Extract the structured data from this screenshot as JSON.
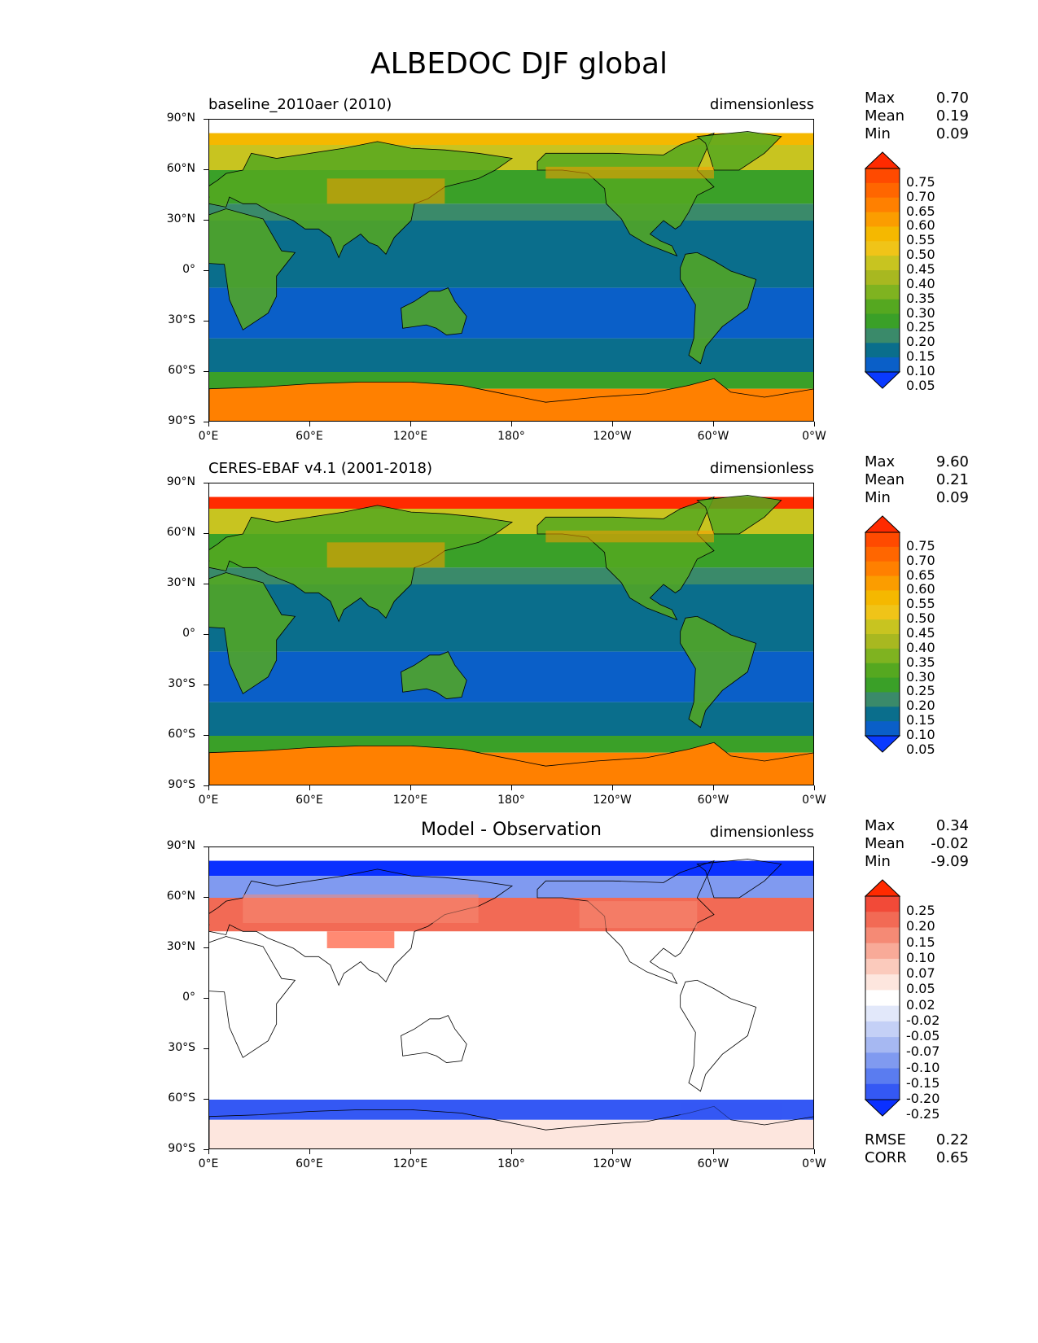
{
  "figure": {
    "title": "ALBEDOC DJF global"
  },
  "axes": {
    "y_ticks": [
      "90°N",
      "60°N",
      "30°N",
      "0°",
      "30°S",
      "60°S",
      "90°S"
    ],
    "x_ticks": [
      "0°E",
      "60°E",
      "120°E",
      "180°",
      "120°W",
      "60°W",
      "0°W"
    ]
  },
  "panels": [
    {
      "title_left": "baseline_2010aer (2010)",
      "title_center": "",
      "units": "dimensionless",
      "stats": [
        {
          "label": "Max",
          "value": "0.70"
        },
        {
          "label": "Mean",
          "value": "0.19"
        },
        {
          "label": "Min",
          "value": "0.09"
        }
      ],
      "colorbar_labels": [
        "0.75",
        "0.70",
        "0.65",
        "0.60",
        "0.55",
        "0.50",
        "0.45",
        "0.40",
        "0.35",
        "0.30",
        "0.25",
        "0.20",
        "0.15",
        "0.10",
        "0.05"
      ],
      "colorbar_colors": [
        "#ff2a00",
        "#ff4a00",
        "#ff6600",
        "#ff8000",
        "#fb9d00",
        "#f5b800",
        "#f0c418",
        "#c8c420",
        "#a8b820",
        "#7fb320",
        "#55a820",
        "#3aa028",
        "#3a8a6a",
        "#0a6e8c",
        "#0a5fc8",
        "#0a3aff"
      ],
      "stats_extra": []
    },
    {
      "title_left": "CERES-EBAF v4.1 (2001-2018)",
      "title_center": "",
      "units": "dimensionless",
      "stats": [
        {
          "label": "Max",
          "value": "9.60"
        },
        {
          "label": "Mean",
          "value": "0.21"
        },
        {
          "label": "Min",
          "value": "0.09"
        }
      ],
      "colorbar_labels": [
        "0.75",
        "0.70",
        "0.65",
        "0.60",
        "0.55",
        "0.50",
        "0.45",
        "0.40",
        "0.35",
        "0.30",
        "0.25",
        "0.20",
        "0.15",
        "0.10",
        "0.05"
      ],
      "colorbar_colors": [
        "#ff2a00",
        "#ff4a00",
        "#ff6600",
        "#ff8000",
        "#fb9d00",
        "#f5b800",
        "#f0c418",
        "#c8c420",
        "#a8b820",
        "#7fb320",
        "#55a820",
        "#3aa028",
        "#3a8a6a",
        "#0a6e8c",
        "#0a5fc8",
        "#0a3aff"
      ],
      "stats_extra": []
    },
    {
      "title_left": "",
      "title_center": "Model - Observation",
      "units": "dimensionless",
      "stats": [
        {
          "label": "Max",
          "value": "0.34"
        },
        {
          "label": "Mean",
          "value": "-0.02"
        },
        {
          "label": "Min",
          "value": "-9.09"
        }
      ],
      "colorbar_labels": [
        "0.25",
        "0.20",
        "0.15",
        "0.10",
        "0.07",
        "0.05",
        "0.02",
        "-0.02",
        "-0.05",
        "-0.07",
        "-0.10",
        "-0.15",
        "-0.20",
        "-0.25"
      ],
      "colorbar_colors": [
        "#ff2a00",
        "#f24a38",
        "#f26a55",
        "#f58a75",
        "#f8aa98",
        "#fbcabc",
        "#fde6de",
        "#ffffff",
        "#e2e8fa",
        "#c4d0f6",
        "#a6b8f2",
        "#809af0",
        "#5a7cf0",
        "#3458f4",
        "#0a30ff"
      ],
      "stats_extra": [
        {
          "label": "RMSE",
          "value": "0.22"
        },
        {
          "label": "CORR",
          "value": "0.65"
        }
      ]
    }
  ]
}
